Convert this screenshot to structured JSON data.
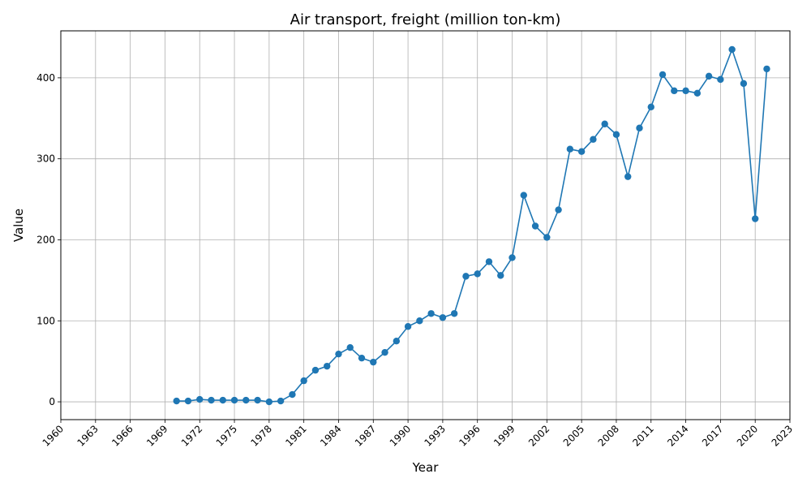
{
  "chart_data": {
    "type": "line",
    "title": "Air transport, freight (million ton-km)",
    "xlabel": "Year",
    "ylabel": "Value",
    "xlim": [
      1960,
      2023
    ],
    "ylim": [
      -22,
      458
    ],
    "xticks": [
      1960,
      1963,
      1966,
      1969,
      1972,
      1975,
      1978,
      1981,
      1984,
      1987,
      1990,
      1993,
      1996,
      1999,
      2002,
      2005,
      2008,
      2011,
      2014,
      2017,
      2020,
      2023
    ],
    "yticks": [
      0,
      100,
      200,
      300,
      400
    ],
    "grid": true,
    "color": "#1f77b4",
    "marker": "circle",
    "x": [
      1970,
      1971,
      1972,
      1973,
      1974,
      1975,
      1976,
      1977,
      1978,
      1979,
      1980,
      1981,
      1982,
      1983,
      1984,
      1985,
      1986,
      1987,
      1988,
      1989,
      1990,
      1991,
      1992,
      1993,
      1994,
      1995,
      1996,
      1997,
      1998,
      1999,
      2000,
      2001,
      2002,
      2003,
      2004,
      2005,
      2006,
      2007,
      2008,
      2009,
      2010,
      2011,
      2012,
      2013,
      2014,
      2015,
      2016,
      2017,
      2018,
      2019,
      2020,
      2021
    ],
    "y": [
      1,
      1,
      3,
      2,
      2,
      2,
      2,
      2,
      0,
      1,
      9,
      26,
      39,
      44,
      59,
      67,
      54,
      49,
      61,
      75,
      93,
      100,
      109,
      104,
      109,
      155,
      158,
      173,
      156,
      178,
      255,
      217,
      203,
      237,
      312,
      309,
      324,
      343,
      330,
      278,
      338,
      364,
      404,
      384,
      384,
      381,
      402,
      398,
      435,
      393,
      226,
      411
    ]
  }
}
